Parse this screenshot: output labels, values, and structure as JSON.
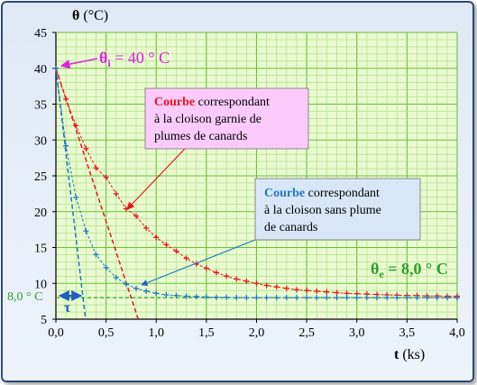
{
  "chart_data": {
    "type": "line",
    "ylabel_symbol": "θ",
    "ylabel_unit": " (°C)",
    "xlabel_symbol": "t",
    "xlabel_unit": " (ks)",
    "xlim": [
      0,
      4
    ],
    "ylim": [
      5,
      45
    ],
    "x_ticks": [
      "0,0",
      "0,5",
      "1,0",
      "1,5",
      "2,0",
      "2,5",
      "3,0",
      "3,5",
      "4,0"
    ],
    "y_ticks": [
      "5",
      "10",
      "15",
      "20",
      "25",
      "30",
      "35",
      "40",
      "45"
    ],
    "grid": true,
    "theta_i_label": {
      "symbol": "θ",
      "sub": "i",
      "text": " = 40 ° C",
      "color": "#e020e0"
    },
    "theta_e_label": {
      "symbol": "θ",
      "sub": "e",
      "text": " = 8,0 ° C",
      "color": "#2e9e2e"
    },
    "hline_label": "8,0 ° C",
    "tau_label": "τ",
    "theta_i": 40,
    "theta_e": 8,
    "series": [
      {
        "color": "#e8161b",
        "tau": 0.75,
        "x": [
          0,
          0.1,
          0.2,
          0.3,
          0.4,
          0.5,
          0.6,
          0.7,
          0.8,
          0.9,
          1.0,
          1.1,
          1.2,
          1.3,
          1.4,
          1.5,
          1.6,
          1.7,
          1.8,
          1.9,
          2.0,
          2.1,
          2.2,
          2.3,
          2.4,
          2.5,
          2.6,
          2.7,
          2.8,
          2.9,
          3.0,
          3.1,
          3.2,
          3.3,
          3.4,
          3.5,
          3.6,
          3.7,
          3.8,
          3.9,
          4.0
        ],
        "y": [
          40,
          35.7,
          32.0,
          28.8,
          26.1,
          24.8,
          22.5,
          20.4,
          19.4,
          17.7,
          16.4,
          15.4,
          14.5,
          13.5,
          12.7,
          12.1,
          11.5,
          11.0,
          10.6,
          10.3,
          10.0,
          9.7,
          9.5,
          9.3,
          9.1,
          9.0,
          8.9,
          8.8,
          8.7,
          8.6,
          8.55,
          8.5,
          8.45,
          8.4,
          8.35,
          8.3,
          8.3,
          8.25,
          8.25,
          8.2,
          8.2
        ]
      },
      {
        "color": "#1f77c0",
        "tau": 0.27,
        "x": [
          0,
          0.1,
          0.2,
          0.3,
          0.4,
          0.5,
          0.6,
          0.7,
          0.8,
          0.9,
          1.0,
          1.1,
          1.2,
          1.3,
          1.4,
          1.5,
          1.6,
          1.7,
          1.8,
          1.9,
          2.0,
          2.1,
          2.2,
          2.3,
          2.4,
          2.5,
          2.6,
          2.7,
          2.8,
          2.9,
          3.0,
          3.1,
          3.2,
          3.3,
          3.4,
          3.5,
          3.6,
          3.7,
          3.8,
          3.9,
          4.0
        ],
        "y": [
          40,
          29.2,
          22.0,
          17.3,
          14.0,
          12.2,
          10.8,
          9.9,
          9.3,
          8.9,
          8.6,
          8.4,
          8.3,
          8.2,
          8.15,
          8.1,
          8.05,
          8.05,
          8.0,
          8.0,
          8.0,
          8.0,
          8.0,
          8.0,
          8.0,
          8.0,
          8.0,
          8.0,
          8.0,
          8.0,
          8.0,
          8.0,
          8.0,
          8.0,
          8.0,
          8.0,
          8.0,
          8.0,
          8.0,
          8.0,
          8.0
        ]
      }
    ],
    "annotation_red": {
      "word": "Courbe",
      "line1_rest": " correspondant",
      "line2": "à la cloison garnie de",
      "line3": "plumes de canards",
      "bg": "#fccafb"
    },
    "annotation_blue": {
      "word": "Courbe",
      "line1_rest": " correspondant",
      "line2": "à la cloison sans plume",
      "line3": "de canards",
      "bg": "#d7e7f7"
    }
  }
}
